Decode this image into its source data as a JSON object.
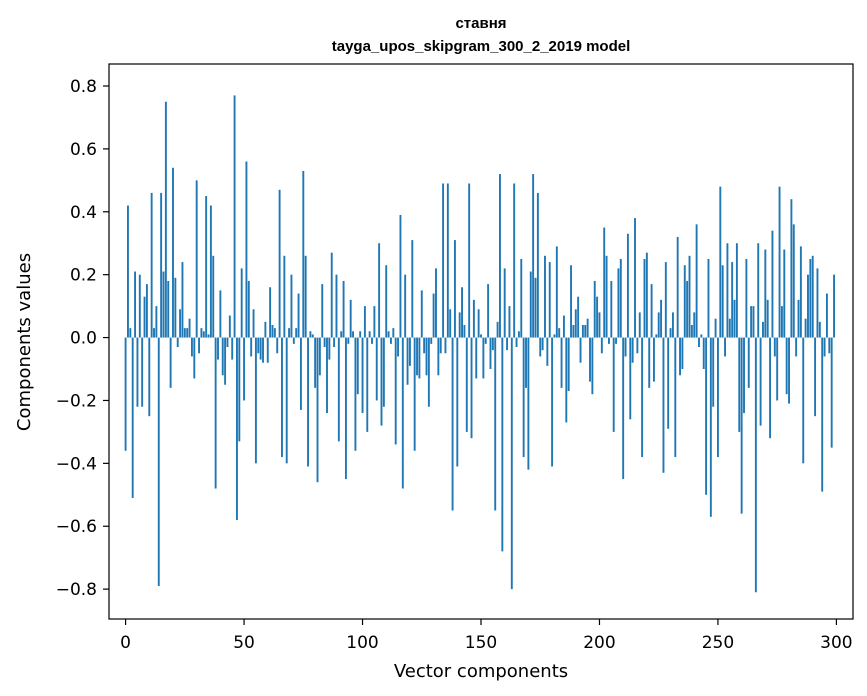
{
  "chart_data": {
    "type": "bar",
    "title_line1": "ставня",
    "title_line2": "tayga_upos_skipgram_300_2_2019 model",
    "xlabel": "Vector components",
    "ylabel": "Components values",
    "xlim": [
      -7,
      307
    ],
    "ylim": [
      -0.895,
      0.87
    ],
    "xticks": [
      0,
      50,
      100,
      150,
      200,
      250,
      300
    ],
    "xtick_labels": [
      "0",
      "50",
      "100",
      "150",
      "200",
      "250",
      "300"
    ],
    "yticks": [
      -0.8,
      -0.6,
      -0.4,
      -0.2,
      0.0,
      0.2,
      0.4,
      0.6,
      0.8
    ],
    "ytick_labels": [
      "−0.8",
      "−0.6",
      "−0.4",
      "−0.2",
      "0.0",
      "0.2",
      "0.4",
      "0.6",
      "0.8"
    ],
    "bar_color": "#1f77b4",
    "values": [
      -0.36,
      0.42,
      0.03,
      -0.51,
      0.21,
      -0.22,
      0.2,
      -0.22,
      0.13,
      0.17,
      -0.25,
      0.46,
      0.03,
      0.1,
      -0.79,
      0.46,
      0.21,
      0.75,
      0.18,
      -0.16,
      0.54,
      0.19,
      -0.03,
      0.09,
      0.24,
      0.03,
      0.03,
      0.06,
      -0.06,
      -0.13,
      0.5,
      -0.05,
      0.03,
      0.02,
      0.45,
      0.01,
      0.42,
      0.26,
      -0.48,
      -0.07,
      0.15,
      -0.12,
      -0.15,
      -0.03,
      0.07,
      -0.07,
      0.77,
      -0.58,
      -0.33,
      0.22,
      -0.2,
      0.56,
      0.18,
      -0.06,
      0.09,
      -0.4,
      -0.05,
      -0.07,
      -0.08,
      0.05,
      -0.08,
      0.16,
      0.04,
      0.03,
      -0.05,
      0.47,
      -0.38,
      0.26,
      -0.4,
      0.03,
      0.2,
      -0.02,
      0.03,
      0.14,
      -0.23,
      0.53,
      0.26,
      -0.41,
      0.02,
      0.01,
      -0.16,
      -0.46,
      -0.12,
      0.17,
      -0.03,
      -0.24,
      -0.07,
      0.27,
      -0.03,
      0.2,
      -0.33,
      0.02,
      0.18,
      -0.45,
      -0.02,
      0.12,
      0.02,
      -0.36,
      -0.18,
      0.02,
      -0.24,
      0.1,
      -0.3,
      0.02,
      -0.02,
      0.1,
      -0.2,
      0.3,
      -0.28,
      -0.22,
      0.23,
      0.02,
      -0.02,
      0.03,
      -0.34,
      -0.06,
      0.39,
      -0.48,
      0.2,
      -0.15,
      -0.09,
      0.31,
      -0.36,
      -0.12,
      -0.13,
      0.15,
      -0.05,
      -0.12,
      -0.22,
      -0.02,
      0.14,
      0.22,
      -0.12,
      -0.05,
      0.49,
      -0.05,
      0.49,
      0.09,
      -0.55,
      0.31,
      -0.41,
      0.08,
      0.16,
      0.04,
      -0.3,
      0.49,
      -0.32,
      0.12,
      -0.13,
      0.09,
      0.01,
      -0.13,
      -0.02,
      0.17,
      -0.1,
      -0.04,
      -0.55,
      0.05,
      0.52,
      -0.68,
      0.22,
      -0.04,
      0.1,
      -0.8,
      0.49,
      -0.03,
      0.02,
      0.25,
      -0.38,
      -0.16,
      -0.42,
      0.21,
      0.52,
      0.19,
      0.46,
      -0.06,
      -0.04,
      0.26,
      -0.09,
      0.24,
      -0.41,
      0.01,
      0.29,
      0.03,
      -0.16,
      0.07,
      -0.27,
      -0.17,
      0.23,
      0.04,
      0.09,
      0.13,
      -0.08,
      0.04,
      0.04,
      0.06,
      -0.14,
      -0.18,
      0.18,
      0.13,
      0.08,
      -0.05,
      0.35,
      0.26,
      -0.02,
      0.18,
      -0.3,
      -0.02,
      0.22,
      0.25,
      -0.45,
      -0.06,
      0.33,
      -0.26,
      -0.08,
      0.38,
      -0.05,
      0.08,
      -0.38,
      0.25,
      0.27,
      -0.16,
      0.17,
      -0.14,
      0.01,
      0.08,
      0.12,
      -0.43,
      0.24,
      -0.29,
      0.03,
      0.08,
      -0.38,
      0.32,
      -0.12,
      -0.1,
      0.23,
      0.18,
      0.26,
      0.04,
      0.08,
      0.36,
      -0.03,
      0.01,
      -0.1,
      -0.5,
      0.25,
      -0.57,
      -0.22,
      0.06,
      -0.38,
      0.48,
      0.23,
      -0.06,
      0.3,
      0.06,
      0.24,
      0.12,
      0.3,
      -0.3,
      -0.56,
      -0.24,
      0.25,
      -0.16,
      0.1,
      0.1,
      -0.81,
      0.3,
      -0.28,
      0.05,
      0.28,
      0.12,
      -0.32,
      0.34,
      -0.06,
      -0.2,
      0.48,
      0.1,
      0.28,
      -0.18,
      -0.21,
      0.44,
      0.36,
      -0.06,
      0.12,
      0.29,
      -0.4,
      0.06,
      0.2,
      0.25,
      0.26,
      -0.25,
      0.22,
      0.05,
      -0.49,
      -0.06,
      0.14,
      -0.05,
      -0.35,
      0.2
    ]
  }
}
